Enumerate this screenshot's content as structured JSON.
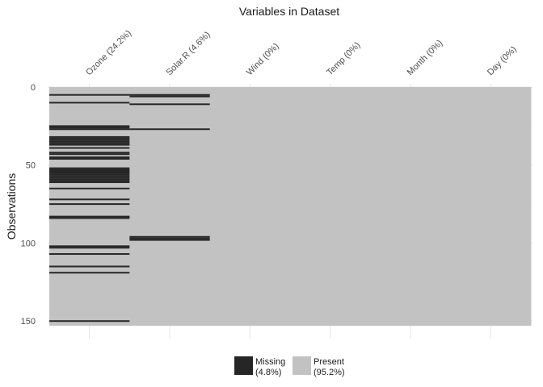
{
  "chart_data": {
    "type": "heatmap",
    "title": "Variables in Dataset",
    "ylabel": "Observations",
    "n_observations": 153,
    "y_ticks": [
      0,
      50,
      100,
      150
    ],
    "variables": [
      {
        "label": "Ozone (24.2%)",
        "missing_rows": [
          5,
          10,
          25,
          26,
          27,
          32,
          33,
          34,
          35,
          36,
          37,
          39,
          42,
          43,
          45,
          46,
          52,
          53,
          54,
          55,
          56,
          57,
          58,
          59,
          60,
          61,
          65,
          72,
          75,
          83,
          84,
          102,
          103,
          107,
          115,
          119,
          150
        ]
      },
      {
        "label": "Solar.R (4.6%)",
        "missing_rows": [
          5,
          6,
          11,
          27,
          96,
          97,
          98
        ]
      },
      {
        "label": "Wind (0%)",
        "missing_rows": []
      },
      {
        "label": "Temp (0%)",
        "missing_rows": []
      },
      {
        "label": "Month (0%)",
        "missing_rows": []
      },
      {
        "label": "Day (0%)",
        "missing_rows": []
      }
    ],
    "legend": [
      {
        "line1": "Missing",
        "line2": "(4.8%)",
        "color": "#262626"
      },
      {
        "line1": "Present",
        "line2": "(95.2%)",
        "color": "#c2c2c2"
      }
    ],
    "legend_position": "bottom",
    "grid": true
  }
}
